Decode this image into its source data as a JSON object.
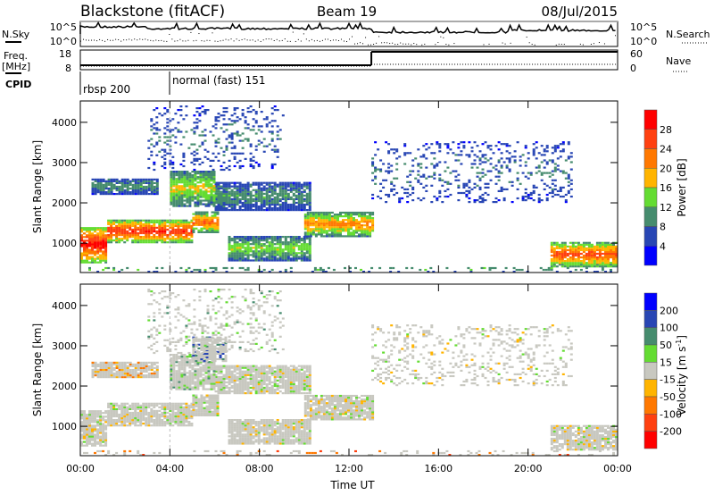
{
  "header": {
    "station": "Blackstone (fitACF)",
    "beam": "Beam 19",
    "date": "08/Jul/2015"
  },
  "summary": {
    "nsky_label": "N.Sky",
    "nsearch_label": "N.Search",
    "noise_ticks": [
      "10^5",
      "10^0"
    ],
    "freq_label": "Freq.",
    "freq_unit": "[MHz]",
    "freq_ticks": [
      "18",
      "8"
    ],
    "nave_label": "Nave",
    "nave_ticks": [
      "60",
      "0"
    ],
    "cpid_label": "CPID",
    "cpid_segments": [
      {
        "name": "rbsp 200",
        "start_hour": 0
      },
      {
        "name": "normal (fast) 151",
        "start_hour": 4
      }
    ],
    "freq_steps": [
      {
        "from": 0,
        "to": 13,
        "value": 10.5
      },
      {
        "from": 13,
        "to": 24,
        "value": 18
      }
    ]
  },
  "chart_data": [
    {
      "type": "heatmap",
      "name": "power",
      "ylabel": "Slant Range [km]",
      "xlabel": "Time UT",
      "xlim": [
        0,
        24
      ],
      "ylim": [
        270,
        4530
      ],
      "x_ticks": [
        "00:00",
        "04:00",
        "08:00",
        "12:00",
        "16:00",
        "20:00",
        "00:00"
      ],
      "y_ticks": [
        "1000",
        "2000",
        "3000",
        "4000"
      ],
      "colorbar": {
        "label": "Power [dB]",
        "ticks": [
          "28",
          "24",
          "20",
          "16",
          "12",
          "8",
          "4"
        ],
        "colors": [
          "#ff0000",
          "#ff4010",
          "#ff7800",
          "#ffb400",
          "#64dc32",
          "#468c6e",
          "#2846b4",
          "#0000ff"
        ]
      },
      "regions": [
        [
          0,
          1.2,
          500,
          1400,
          26
        ],
        [
          1.2,
          5,
          1000,
          1550,
          24
        ],
        [
          5,
          6.2,
          1250,
          1750,
          20
        ],
        [
          6,
          10.2,
          1800,
          2500,
          8
        ],
        [
          6.6,
          10.2,
          550,
          1150,
          12
        ],
        [
          10,
          13,
          1150,
          1750,
          18
        ],
        [
          0.5,
          3.5,
          2200,
          2600,
          8
        ],
        [
          4,
          6,
          1900,
          2800,
          14
        ],
        [
          13,
          22,
          2000,
          3500,
          6
        ],
        [
          21,
          24,
          400,
          1000,
          22
        ],
        [
          0,
          24,
          270,
          400,
          10
        ],
        [
          3,
          9,
          2800,
          4400,
          6
        ]
      ]
    },
    {
      "type": "heatmap",
      "name": "velocity",
      "ylabel": "Slant Range [km]",
      "xlabel": "Time UT",
      "xlim": [
        0,
        24
      ],
      "ylim": [
        270,
        4530
      ],
      "x_ticks": [
        "00:00",
        "04:00",
        "08:00",
        "12:00",
        "16:00",
        "20:00",
        "00:00"
      ],
      "y_ticks": [
        "1000",
        "2000",
        "3000",
        "4000"
      ],
      "colorbar": {
        "label": "Velocity [m s",
        "label_sup": "-1",
        "label_end": "]",
        "ticks": [
          "200",
          "100",
          "50",
          "15",
          "-15",
          "-50",
          "-100",
          "-200"
        ],
        "colors": [
          "#0000ff",
          "#2846b4",
          "#468c6e",
          "#64dc32",
          "#c8c8c0",
          "#ffb400",
          "#ff7800",
          "#ff4010",
          "#ff0000"
        ]
      },
      "regions": [
        [
          0,
          1.2,
          500,
          1400,
          0
        ],
        [
          1.2,
          5,
          1000,
          1550,
          0
        ],
        [
          5,
          6.2,
          1250,
          1750,
          0
        ],
        [
          6,
          10.2,
          1800,
          2500,
          0
        ],
        [
          6.6,
          10.2,
          550,
          1150,
          0
        ],
        [
          10,
          13,
          1150,
          1750,
          0
        ],
        [
          0.5,
          3.5,
          2200,
          2600,
          -60
        ],
        [
          4,
          6,
          1900,
          2800,
          40
        ],
        [
          5,
          6.5,
          2600,
          3200,
          120
        ],
        [
          13,
          22,
          2000,
          3500,
          0
        ],
        [
          21,
          24,
          400,
          1000,
          0
        ],
        [
          0,
          24,
          270,
          400,
          -80
        ],
        [
          3,
          9,
          2800,
          4400,
          30
        ]
      ]
    }
  ]
}
